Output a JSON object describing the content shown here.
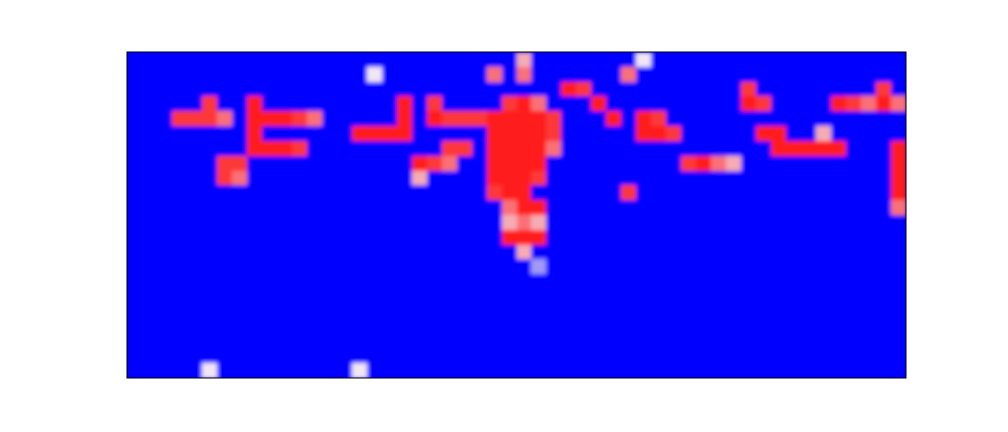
{
  "chart_data": {
    "type": "heatmap",
    "tick_labels": false,
    "z": [
      [
        0,
        0,
        0,
        0,
        0,
        0,
        0,
        0,
        0,
        0,
        0,
        0,
        0,
        0,
        0,
        0,
        0,
        0,
        0,
        0,
        0,
        0,
        0,
        0,
        0,
        0,
        0.4,
        0,
        0,
        0,
        0,
        0,
        0,
        0,
        0.3,
        0,
        0,
        0,
        0,
        0,
        0,
        0,
        0,
        0,
        0,
        0,
        0,
        0,
        0,
        0,
        0,
        0
      ],
      [
        0,
        0,
        0,
        0,
        0,
        0,
        0,
        0,
        0,
        0,
        0,
        0,
        0,
        0,
        0,
        0,
        0.3,
        0,
        0,
        0,
        0,
        0,
        0,
        0,
        0.5,
        0,
        0.5,
        0,
        0,
        0,
        0,
        0,
        0,
        0.5,
        0,
        0,
        0,
        0,
        0,
        0,
        0,
        0,
        0,
        0,
        0,
        0,
        0,
        0,
        0,
        0,
        0,
        0
      ],
      [
        0,
        0,
        0,
        0,
        0,
        0,
        0,
        0,
        0,
        0,
        0,
        0,
        0,
        0,
        0,
        0,
        0,
        0,
        0,
        0,
        0,
        0,
        0,
        0,
        0,
        0,
        0,
        0,
        0,
        0.8,
        0.6,
        0,
        0,
        0,
        0,
        0,
        0,
        0,
        0,
        0,
        0,
        0.6,
        0,
        0,
        0,
        0,
        0,
        0,
        0,
        0,
        0.6,
        0
      ],
      [
        0,
        0,
        0,
        0,
        0,
        0.6,
        0,
        0,
        0.8,
        0,
        0,
        0,
        0,
        0,
        0,
        0,
        0,
        0,
        0.7,
        0,
        0.6,
        0,
        0,
        0,
        0,
        0.6,
        0.8,
        0.5,
        0,
        0,
        0,
        0.8,
        0,
        0,
        0,
        0,
        0,
        0,
        0,
        0,
        0,
        0.7,
        0.6,
        0,
        0,
        0,
        0,
        0.7,
        0.6,
        0.5,
        0.8,
        0.5
      ],
      [
        0,
        0,
        0,
        0.6,
        0.6,
        0.6,
        0.5,
        0,
        1,
        0.8,
        0.7,
        0.6,
        0.5,
        0,
        0,
        0,
        0,
        0,
        0.8,
        0,
        0.7,
        0.6,
        0.6,
        0.6,
        0.7,
        0.9,
        1,
        0.9,
        0.6,
        0,
        0,
        0,
        0.8,
        0,
        0.7,
        0.6,
        0,
        0,
        0,
        0,
        0,
        0,
        0,
        0,
        0,
        0,
        0,
        0,
        0,
        0,
        0,
        0
      ],
      [
        0,
        0,
        0,
        0,
        0,
        0,
        0,
        0,
        0.7,
        0,
        0,
        0,
        0,
        0,
        0,
        0.7,
        0.9,
        0.8,
        0.7,
        0,
        0,
        0,
        0,
        0,
        0.9,
        1,
        1,
        0.9,
        0.6,
        0,
        0,
        0,
        0,
        0,
        0.8,
        0.8,
        0.6,
        0,
        0,
        0,
        0,
        0,
        0.7,
        0.7,
        0,
        0,
        0.4,
        0,
        0,
        0,
        0,
        0
      ],
      [
        0,
        0,
        0,
        0,
        0,
        0,
        0,
        0,
        0.7,
        0.8,
        0.8,
        0.6,
        0,
        0,
        0,
        0,
        0,
        0,
        0,
        0,
        0,
        0.6,
        0.6,
        0,
        0.8,
        1,
        1,
        0.9,
        0.5,
        0,
        0,
        0,
        0,
        0,
        0,
        0,
        0,
        0,
        0,
        0,
        0,
        0,
        0,
        0.8,
        0.8,
        0.8,
        0.8,
        0.7,
        0,
        0,
        0,
        0.8
      ],
      [
        0,
        0,
        0,
        0,
        0,
        0,
        0.6,
        0.6,
        0,
        0,
        0,
        0,
        0,
        0,
        0,
        0,
        0,
        0,
        0,
        0.7,
        0.6,
        0.5,
        0,
        0,
        0.8,
        1,
        1,
        0.8,
        0,
        0,
        0,
        0,
        0,
        0,
        0,
        0,
        0,
        0.6,
        0.7,
        0.5,
        0.4,
        0,
        0,
        0,
        0,
        0,
        0,
        0,
        0,
        0,
        0,
        0.9
      ],
      [
        0,
        0,
        0,
        0,
        0,
        0,
        0.6,
        0.5,
        0,
        0,
        0,
        0,
        0,
        0,
        0,
        0,
        0,
        0,
        0,
        0.4,
        0,
        0,
        0,
        0,
        0.7,
        0.9,
        0.9,
        0.6,
        0,
        0,
        0,
        0,
        0,
        0,
        0,
        0,
        0,
        0,
        0,
        0,
        0,
        0,
        0,
        0,
        0,
        0,
        0,
        0,
        0,
        0,
        0,
        0.8
      ],
      [
        0,
        0,
        0,
        0,
        0,
        0,
        0,
        0,
        0,
        0,
        0,
        0,
        0,
        0,
        0,
        0,
        0,
        0,
        0,
        0,
        0,
        0,
        0,
        0,
        0.6,
        0.8,
        0.7,
        0,
        0,
        0,
        0,
        0,
        0,
        0.6,
        0,
        0,
        0,
        0,
        0,
        0,
        0,
        0,
        0,
        0,
        0,
        0,
        0,
        0,
        0,
        0,
        0,
        0.7
      ],
      [
        0,
        0,
        0,
        0,
        0,
        0,
        0,
        0,
        0,
        0,
        0,
        0,
        0,
        0,
        0,
        0,
        0,
        0,
        0,
        0,
        0,
        0,
        0,
        0,
        0,
        0.5,
        0.8,
        0.8,
        0,
        0,
        0,
        0,
        0,
        0,
        0,
        0,
        0,
        0,
        0,
        0,
        0,
        0,
        0,
        0,
        0,
        0,
        0,
        0,
        0,
        0,
        0,
        0.5
      ],
      [
        0,
        0,
        0,
        0,
        0,
        0,
        0,
        0,
        0,
        0,
        0,
        0,
        0,
        0,
        0,
        0,
        0,
        0,
        0,
        0,
        0,
        0,
        0,
        0,
        0,
        0.4,
        0.5,
        0.4,
        0,
        0,
        0,
        0,
        0,
        0,
        0,
        0,
        0,
        0,
        0,
        0,
        0,
        0,
        0,
        0,
        0,
        0,
        0,
        0,
        0,
        0,
        0,
        0
      ],
      [
        0,
        0,
        0,
        0,
        0,
        0,
        0,
        0,
        0,
        0,
        0,
        0,
        0,
        0,
        0,
        0,
        0,
        0,
        0,
        0,
        0,
        0,
        0,
        0,
        0,
        0.8,
        0.9,
        0.8,
        0,
        0,
        0,
        0,
        0,
        0,
        0,
        0,
        0,
        0,
        0,
        0,
        0,
        0,
        0,
        0,
        0,
        0,
        0,
        0,
        0,
        0,
        0,
        0
      ],
      [
        0,
        0,
        0,
        0,
        0,
        0,
        0,
        0,
        0,
        0,
        0,
        0,
        0,
        0,
        0,
        0,
        0,
        0,
        0,
        0,
        0,
        0,
        0,
        0,
        0,
        0,
        0.4,
        0,
        0,
        0,
        0,
        0,
        0,
        0,
        0,
        0,
        0,
        0,
        0,
        0,
        0,
        0,
        0,
        0,
        0,
        0,
        0,
        0,
        0,
        0,
        0,
        0
      ],
      [
        0,
        0,
        0,
        0,
        0,
        0,
        0,
        0,
        0,
        0,
        0,
        0,
        0,
        0,
        0,
        0,
        0,
        0,
        0,
        0,
        0,
        0,
        0,
        0,
        0,
        0,
        0,
        0.2,
        0,
        0,
        0,
        0,
        0,
        0,
        0,
        0,
        0,
        0,
        0,
        0,
        0,
        0,
        0,
        0,
        0,
        0,
        0,
        0,
        0,
        0,
        0,
        0
      ],
      [
        0,
        0,
        0,
        0,
        0,
        0,
        0,
        0,
        0,
        0,
        0,
        0,
        0,
        0,
        0,
        0,
        0,
        0,
        0,
        0,
        0,
        0,
        0,
        0,
        0,
        0,
        0,
        0,
        0,
        0,
        0,
        0,
        0,
        0,
        0,
        0,
        0,
        0,
        0,
        0,
        0,
        0,
        0,
        0,
        0,
        0,
        0,
        0,
        0,
        0,
        0,
        0
      ],
      [
        0,
        0,
        0,
        0,
        0,
        0,
        0,
        0,
        0,
        0,
        0,
        0,
        0,
        0,
        0,
        0,
        0,
        0,
        0,
        0,
        0,
        0,
        0,
        0,
        0,
        0,
        0,
        0,
        0,
        0,
        0,
        0,
        0,
        0,
        0,
        0,
        0,
        0,
        0,
        0,
        0,
        0,
        0,
        0,
        0,
        0,
        0,
        0,
        0,
        0,
        0,
        0
      ],
      [
        0,
        0,
        0,
        0,
        0,
        0,
        0,
        0,
        0,
        0,
        0,
        0,
        0,
        0,
        0,
        0,
        0,
        0,
        0,
        0,
        0,
        0,
        0,
        0,
        0,
        0,
        0,
        0,
        0,
        0,
        0,
        0,
        0,
        0,
        0,
        0,
        0,
        0,
        0,
        0,
        0,
        0,
        0,
        0,
        0,
        0,
        0,
        0,
        0,
        0,
        0,
        0
      ],
      [
        0,
        0,
        0,
        0,
        0,
        0,
        0,
        0,
        0,
        0,
        0,
        0,
        0,
        0,
        0,
        0,
        0,
        0,
        0,
        0,
        0,
        0,
        0,
        0,
        0,
        0,
        0,
        0,
        0,
        0,
        0,
        0,
        0,
        0,
        0,
        0,
        0,
        0,
        0,
        0,
        0,
        0,
        0,
        0,
        0,
        0,
        0,
        0,
        0,
        0,
        0,
        0
      ],
      [
        0,
        0,
        0,
        0,
        0,
        0,
        0,
        0,
        0,
        0,
        0,
        0,
        0,
        0,
        0,
        0,
        0,
        0,
        0,
        0,
        0,
        0,
        0,
        0,
        0,
        0,
        0,
        0,
        0,
        0,
        0,
        0,
        0,
        0,
        0,
        0,
        0,
        0,
        0,
        0,
        0,
        0,
        0,
        0,
        0,
        0,
        0,
        0,
        0,
        0,
        0,
        0
      ],
      [
        0,
        0,
        0,
        0,
        0,
        0,
        0,
        0,
        0,
        0,
        0,
        0,
        0,
        0,
        0,
        0,
        0,
        0,
        0,
        0,
        0,
        0,
        0,
        0,
        0,
        0,
        0,
        0,
        0,
        0,
        0,
        0,
        0,
        0,
        0,
        0,
        0,
        0,
        0,
        0,
        0,
        0,
        0,
        0,
        0,
        0,
        0,
        0,
        0,
        0,
        0,
        0
      ],
      [
        0,
        0,
        0,
        0,
        0,
        0.3,
        0,
        0,
        0,
        0,
        0,
        0,
        0,
        0,
        0,
        0.3,
        0,
        0,
        0,
        0,
        0,
        0,
        0,
        0,
        0,
        0,
        0,
        0,
        0,
        0,
        0,
        0,
        0,
        0,
        0,
        0,
        0,
        0,
        0,
        0,
        0,
        0,
        0,
        0,
        0,
        0,
        0,
        0,
        0,
        0,
        0,
        0
      ]
    ]
  }
}
